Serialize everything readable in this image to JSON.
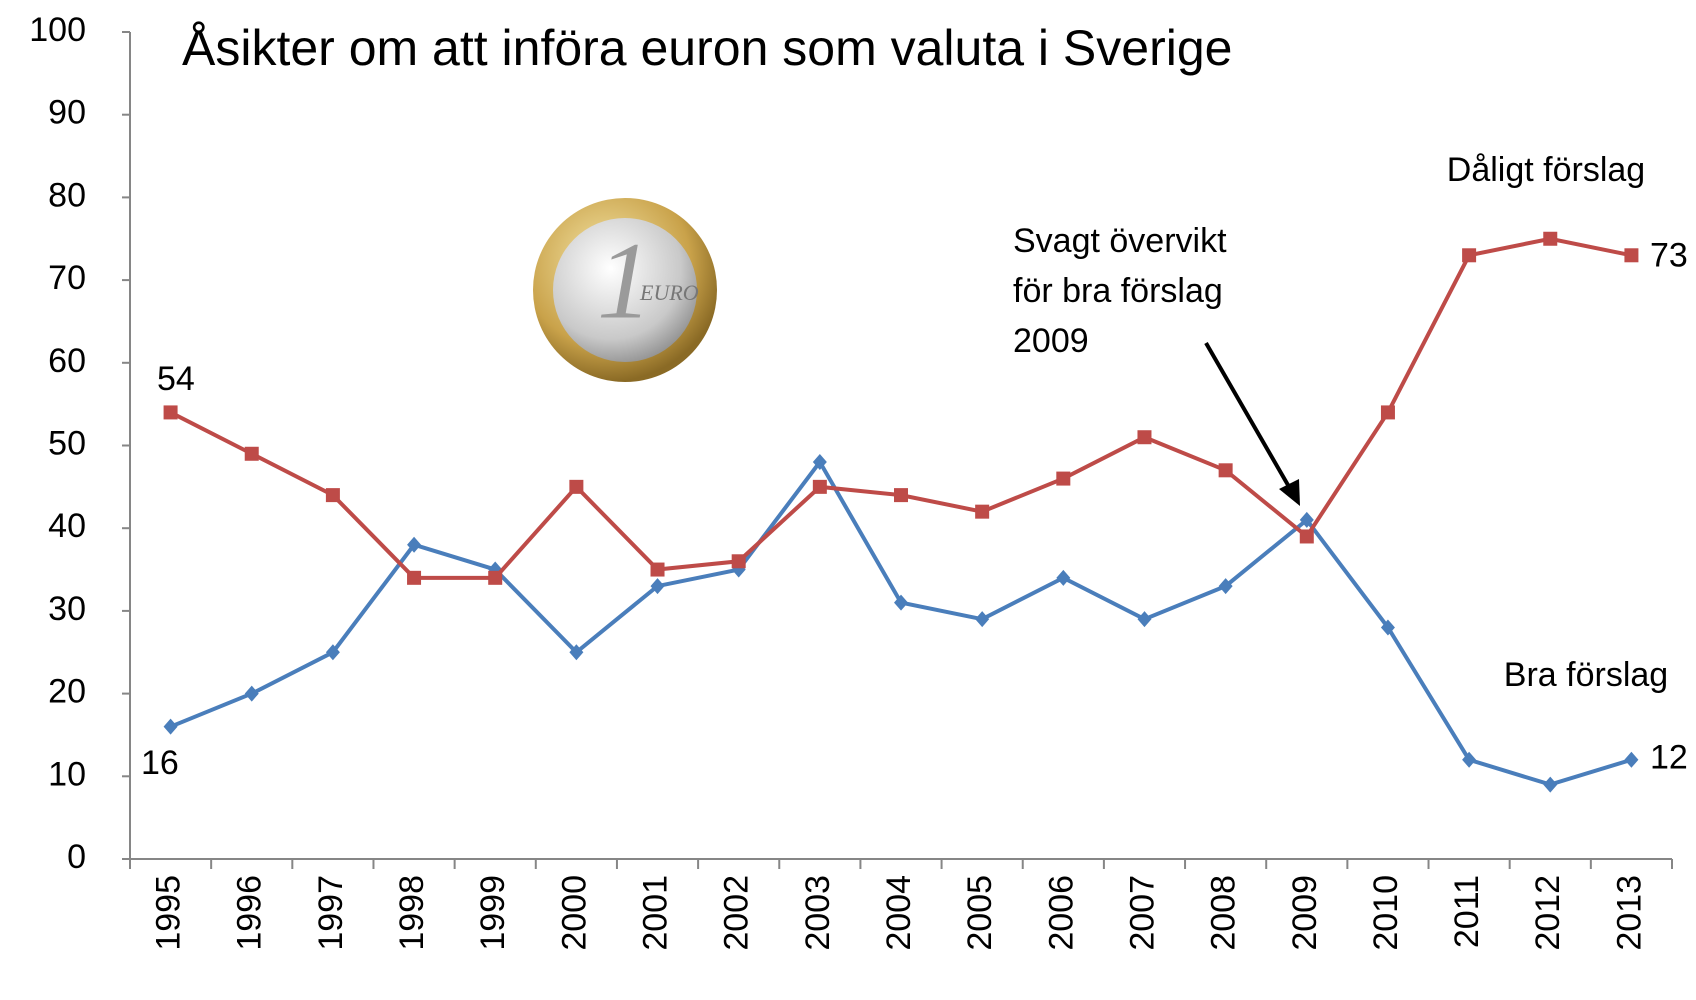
{
  "chart_data": {
    "type": "line",
    "title": "Åsikter om att införa euron som valuta i Sverige",
    "categories": [
      "1995",
      "1996",
      "1997",
      "1998",
      "1999",
      "2000",
      "2001",
      "2002",
      "2003",
      "2004",
      "2005",
      "2006",
      "2007",
      "2008",
      "2009",
      "2010",
      "2011",
      "2012",
      "2013"
    ],
    "series": [
      {
        "name": "Bra förslag",
        "color": "#4a7ebb",
        "marker": "diamond",
        "values": [
          16,
          20,
          25,
          38,
          35,
          25,
          33,
          35,
          48,
          31,
          29,
          34,
          29,
          33,
          41,
          28,
          12,
          9,
          12
        ]
      },
      {
        "name": "Dåligt förslag",
        "color": "#be4b48",
        "marker": "square",
        "values": [
          54,
          49,
          44,
          34,
          34,
          45,
          35,
          36,
          45,
          44,
          42,
          46,
          51,
          47,
          39,
          54,
          73,
          75,
          73
        ]
      }
    ],
    "annotation": [
      "Svagt övervikt",
      "för bra förslag",
      "2009"
    ],
    "ylim": [
      0,
      100
    ],
    "yticks": [
      0,
      10,
      20,
      30,
      40,
      50,
      60,
      70,
      80,
      90,
      100
    ],
    "grid": false
  }
}
